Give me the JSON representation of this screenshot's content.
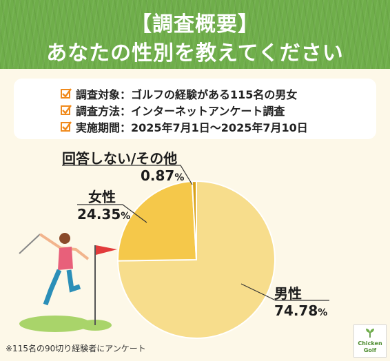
{
  "header": {
    "title_line1": "【調査概要】",
    "title_line2": "あなたの性別を教えてください"
  },
  "survey": {
    "rows": [
      "調査対象：ゴルフの経験がある115名の男女",
      "調査方法：インターネットアンケート調査",
      "実施期間：2025年7月1日〜2025年7月10日"
    ]
  },
  "chart_data": {
    "type": "pie",
    "slices": [
      {
        "label": "男性",
        "value": 74.78,
        "value_text": "74.78",
        "color": "#f7dd8c"
      },
      {
        "label": "女性",
        "value": 24.35,
        "value_text": "24.35",
        "color": "#f5c84a"
      },
      {
        "label": "回答しない/その他",
        "value": 0.87,
        "value_text": "0.87",
        "color": "#d9a21a"
      }
    ],
    "unit": "%"
  },
  "footnote": "※115名の90切り経験者にアンケート",
  "logo": {
    "line1": "Chicken",
    "line2": "Golf"
  },
  "colors": {
    "header_green": "#6fae4a",
    "background": "#fdf8e8",
    "check_orange": "#f08a1c"
  }
}
